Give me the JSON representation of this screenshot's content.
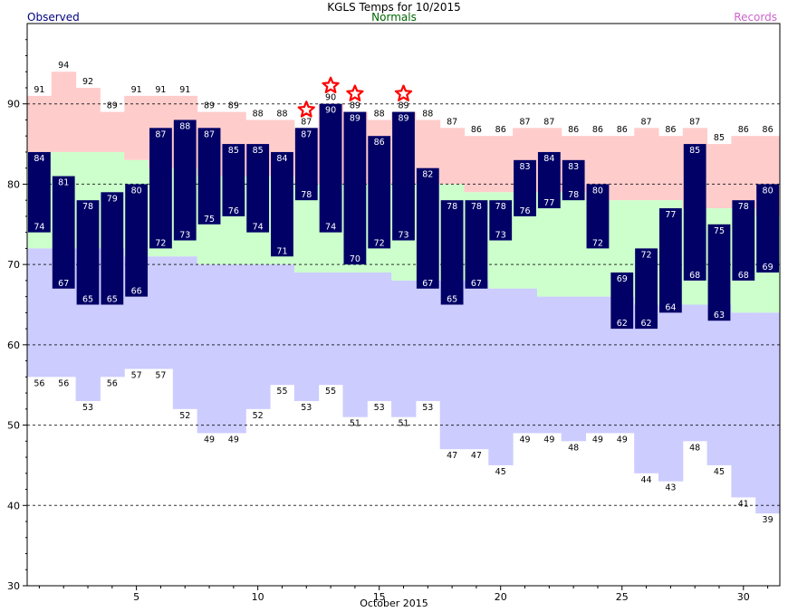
{
  "legend": {
    "observed": "Observed",
    "normals": "Normals",
    "records": "Records"
  },
  "chart_data": {
    "type": "bar",
    "title": "KGLS Temps for 10/2015",
    "xlabel": "October 2015",
    "ylabel": "",
    "ylim": [
      30,
      100
    ],
    "xlim": [
      0.5,
      31.5
    ],
    "yticks": [
      30,
      40,
      50,
      60,
      70,
      80,
      90
    ],
    "xticks": [
      5,
      10,
      15,
      20,
      25,
      30
    ],
    "grid_lines_y": [
      40,
      50,
      60,
      70,
      80,
      90
    ],
    "days": [
      1,
      2,
      3,
      4,
      5,
      6,
      7,
      8,
      9,
      10,
      11,
      12,
      13,
      14,
      15,
      16,
      17,
      18,
      19,
      20,
      21,
      22,
      23,
      24,
      25,
      26,
      27,
      28,
      29,
      30,
      31
    ],
    "observed_high": [
      84,
      81,
      78,
      79,
      80,
      87,
      88,
      87,
      85,
      85,
      84,
      87,
      90,
      89,
      86,
      89,
      82,
      78,
      78,
      78,
      83,
      84,
      83,
      80,
      69,
      72,
      77,
      85,
      75,
      78,
      80
    ],
    "observed_low": [
      74,
      67,
      65,
      65,
      66,
      72,
      73,
      75,
      76,
      74,
      71,
      78,
      74,
      70,
      72,
      73,
      67,
      65,
      67,
      73,
      76,
      77,
      78,
      72,
      62,
      62,
      64,
      68,
      63,
      68,
      69
    ],
    "normal_high": [
      84,
      84,
      84,
      84,
      83,
      82,
      82,
      81,
      81,
      81,
      81,
      80,
      80,
      80,
      80,
      80,
      80,
      80,
      79,
      79,
      79,
      79,
      79,
      78,
      78,
      78,
      78,
      77,
      77,
      77,
      76
    ],
    "normal_low": [
      72,
      72,
      72,
      72,
      71,
      71,
      71,
      70,
      70,
      70,
      70,
      69,
      69,
      69,
      69,
      68,
      68,
      68,
      68,
      67,
      67,
      66,
      66,
      66,
      66,
      65,
      65,
      65,
      65,
      64,
      64
    ],
    "record_high": [
      91,
      94,
      92,
      89,
      91,
      91,
      91,
      89,
      89,
      88,
      88,
      87,
      90,
      89,
      88,
      89,
      88,
      87,
      86,
      86,
      87,
      87,
      86,
      86,
      86,
      87,
      86,
      87,
      85,
      86,
      86
    ],
    "record_low": [
      56,
      56,
      53,
      56,
      57,
      57,
      52,
      49,
      49,
      52,
      55,
      53,
      55,
      51,
      53,
      51,
      53,
      47,
      47,
      45,
      49,
      49,
      48,
      49,
      49,
      44,
      43,
      48,
      45,
      41,
      39
    ],
    "record_set_days": [
      12,
      13,
      14,
      16
    ],
    "colors": {
      "observed": "#000066",
      "normals_band": "#ccffcc",
      "records_above": "#ffcccc",
      "records_below": "#ccccff",
      "star": "#ff0000",
      "observed_title": "#000080",
      "normals_title": "#006600",
      "records_title": "#cc66cc"
    }
  }
}
